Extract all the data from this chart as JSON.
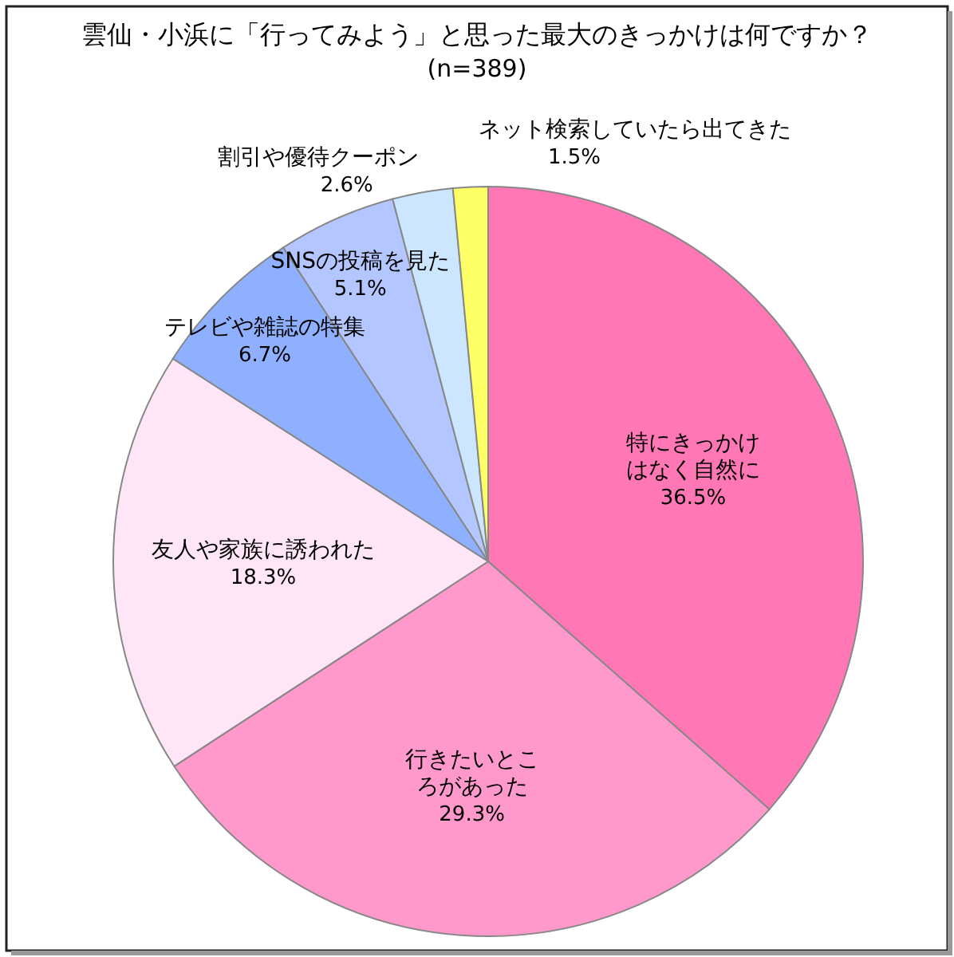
{
  "chart_data": {
    "type": "pie",
    "title": "雲仙・小浜に「行ってみよう」と思った最大のきっかけは何ですか？",
    "subtitle": "(n=389)",
    "categories": [
      "特にきっかけはなく自然に",
      "行きたいところがあった",
      "友人や家族に誘われた",
      "テレビや雑誌の特集",
      "SNSの投稿を見た",
      "割引や優待クーポン",
      "ネット検索していたら出てきた"
    ],
    "values": [
      36.5,
      29.3,
      18.3,
      6.7,
      5.1,
      2.6,
      1.5
    ],
    "value_labels": [
      "36.5%",
      "29.3%",
      "18.3%",
      "6.7%",
      "5.1%",
      "2.6%",
      "1.5%"
    ],
    "colors": [
      "#ff77b4",
      "#ff99cc",
      "#ffe6f7",
      "#8fb0ff",
      "#b3c6ff",
      "#cce6ff",
      "#ffff66"
    ]
  }
}
